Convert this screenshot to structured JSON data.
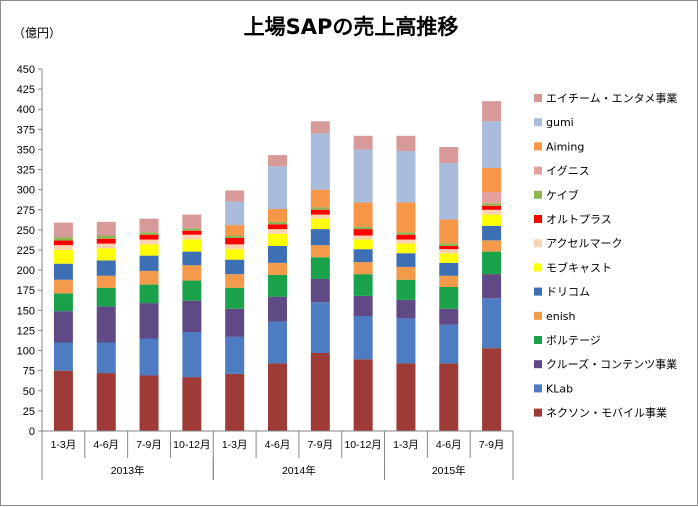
{
  "chart_data": {
    "type": "bar",
    "stacked": true,
    "title": "上場SAPの売上高推移",
    "ylabel": "（億円）",
    "ylim": [
      0,
      450
    ],
    "ytick_step": 25,
    "categories": [
      "1-3月",
      "4-6月",
      "7-9月",
      "10-12月",
      "1-3月",
      "4-6月",
      "7-9月",
      "10-12月",
      "1-3月",
      "4-6月",
      "7-9月"
    ],
    "year_groups": [
      {
        "label": "2013年",
        "span": 4
      },
      {
        "label": "2014年",
        "span": 4
      },
      {
        "label": "2015年",
        "span": 3
      }
    ],
    "legend_position": "right",
    "series": [
      {
        "name": "ネクソン・モバイル事業",
        "color": "#9e3b37",
        "values": [
          75,
          72,
          69,
          67,
          71,
          84,
          97,
          89,
          84,
          84,
          103
        ]
      },
      {
        "name": "KLab",
        "color": "#4d7cc2",
        "values": [
          35,
          38,
          46,
          56,
          46,
          52,
          63,
          54,
          56,
          48,
          62
        ]
      },
      {
        "name": "クルーズ・コンテンツ事業",
        "color": "#5f4a86",
        "values": [
          39,
          45,
          44,
          39,
          35,
          31,
          29,
          25,
          23,
          20,
          30
        ]
      },
      {
        "name": "ボルテージ",
        "color": "#1aa24b",
        "values": [
          22,
          23,
          23,
          25,
          26,
          27,
          27,
          27,
          25,
          27,
          28
        ]
      },
      {
        "name": "enish",
        "color": "#f39b4a",
        "values": [
          17,
          15,
          17,
          19,
          17,
          15,
          15,
          15,
          16,
          14,
          14
        ]
      },
      {
        "name": "ドリコム",
        "color": "#3d6fb4",
        "values": [
          20,
          19,
          19,
          17,
          18,
          21,
          20,
          16,
          17,
          16,
          18
        ]
      },
      {
        "name": "モブキャスト",
        "color": "#ffff00",
        "values": [
          17,
          15,
          14,
          15,
          13,
          15,
          13,
          12,
          12,
          12,
          14
        ]
      },
      {
        "name": "アクセルマーク",
        "color": "#fbd3b2",
        "values": [
          6,
          6,
          6,
          6,
          6,
          6,
          5,
          5,
          5,
          5,
          6
        ]
      },
      {
        "name": "オルトプラス",
        "color": "#ff0000",
        "values": [
          6,
          6,
          6,
          5,
          8,
          6,
          6,
          8,
          6,
          4,
          5
        ]
      },
      {
        "name": "ケイブ",
        "color": "#8fb552",
        "values": [
          4,
          4,
          3,
          3,
          3,
          3,
          3,
          3,
          3,
          3,
          3
        ]
      },
      {
        "name": "イグニス",
        "color": "#e6a09e",
        "values": [
          0,
          0,
          0,
          0,
          0,
          0,
          0,
          0,
          0,
          0,
          14
        ]
      },
      {
        "name": "Aiming",
        "color": "#f79646",
        "values": [
          0,
          0,
          0,
          0,
          13,
          16,
          22,
          30,
          37,
          30,
          30
        ]
      },
      {
        "name": "gumi",
        "color": "#a9bcdb",
        "values": [
          0,
          0,
          0,
          0,
          29,
          53,
          70,
          66,
          64,
          70,
          58
        ]
      },
      {
        "name": "エイチーム・エンタメ事業",
        "color": "#d79a98",
        "values": [
          18,
          17,
          17,
          17,
          14,
          14,
          15,
          17,
          19,
          20,
          25
        ]
      }
    ]
  }
}
